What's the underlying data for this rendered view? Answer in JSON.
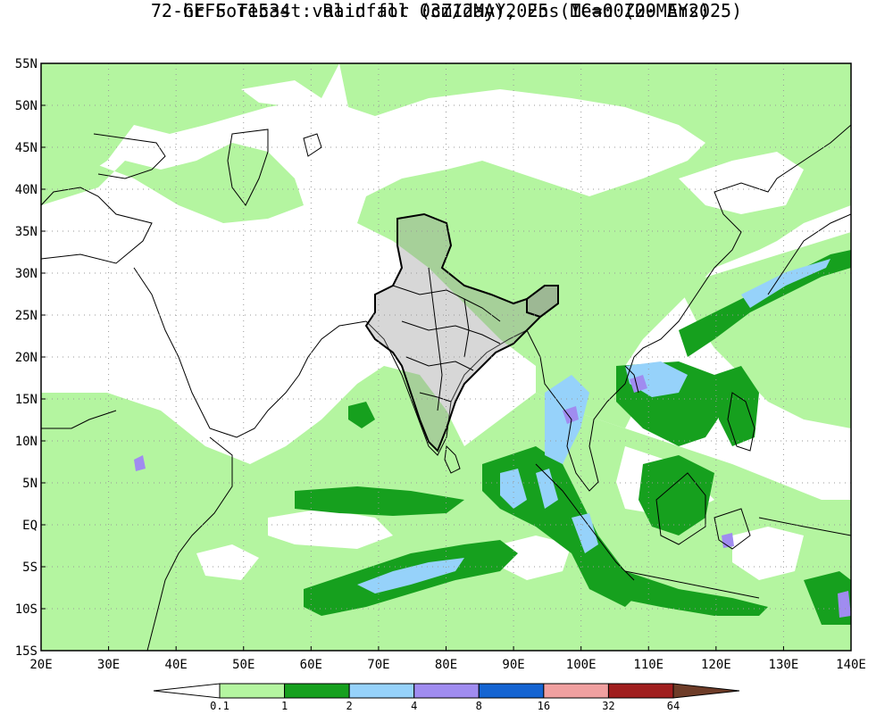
{
  "title": {
    "line1": "GEFS T1534 : Rainfall (cm/day), Ens Mean (20 Ens)",
    "line2": "72-hr Forecast valid for 03Z12MAY2025 (IC=00Z09MAY2025)"
  },
  "axes": {
    "lat_labels": [
      "55N",
      "50N",
      "45N",
      "40N",
      "35N",
      "30N",
      "25N",
      "20N",
      "15N",
      "10N",
      "5N",
      "EQ",
      "5S",
      "10S",
      "15S"
    ],
    "lat_values": [
      55,
      50,
      45,
      40,
      35,
      30,
      25,
      20,
      15,
      10,
      5,
      0,
      -5,
      -10,
      -15
    ],
    "lon_labels": [
      "20E",
      "30E",
      "40E",
      "50E",
      "60E",
      "70E",
      "80E",
      "90E",
      "100E",
      "110E",
      "120E",
      "130E",
      "140E"
    ],
    "lon_values": [
      20,
      30,
      40,
      50,
      60,
      70,
      80,
      90,
      100,
      110,
      120,
      130,
      140
    ],
    "lat_range": [
      -15,
      55
    ],
    "lon_range": [
      20,
      140
    ],
    "grid": "dotted"
  },
  "colorbar": {
    "levels": [
      "0.1",
      "1",
      "2",
      "4",
      "8",
      "16",
      "32",
      "64"
    ],
    "colors": [
      "#ffffff",
      "#b4f5a0",
      "#16a01e",
      "#96d2fa",
      "#a08cf0",
      "#1464d2",
      "#f0a0a0",
      "#a01e1e",
      "#6e3c28"
    ]
  },
  "rain_fields": [
    {
      "level": "1",
      "color": "#b4f5a0",
      "lon": [
        20,
        140
      ],
      "lat": [
        -15,
        52
      ],
      "cover": "broad"
    },
    {
      "level": "2",
      "color": "#16a01e",
      "lon": [
        85,
        100
      ],
      "lat": [
        -8,
        10
      ],
      "cover": "bay-sumatra"
    },
    {
      "level": "2",
      "color": "#16a01e",
      "lon": [
        60,
        95
      ],
      "lat": [
        -13,
        -3
      ],
      "cover": "south-indian-ocean"
    },
    {
      "level": "2",
      "color": "#16a01e",
      "lon": [
        100,
        140
      ],
      "lat": [
        15,
        33
      ],
      "cover": "west-pacific-band"
    },
    {
      "level": "4",
      "color": "#96d2fa",
      "lon": [
        92,
        120
      ],
      "lat": [
        5,
        22
      ],
      "cover": "indochina-scs"
    },
    {
      "level": "8",
      "color": "#a08cf0",
      "lon": [
        97,
        112
      ],
      "lat": [
        10,
        22
      ],
      "cover": "patches"
    }
  ]
}
